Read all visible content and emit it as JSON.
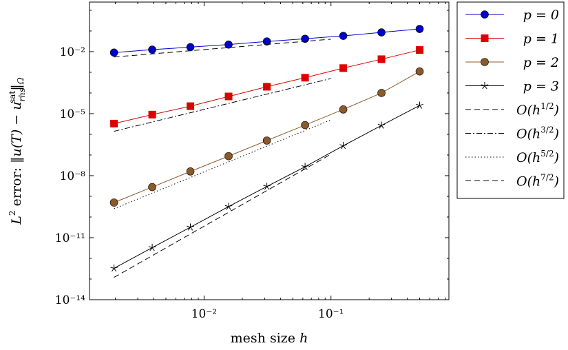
{
  "chart_data": {
    "type": "line",
    "x_scale": "log",
    "y_scale": "log",
    "xlim": [
      0.00125,
      0.85
    ],
    "ylim": [
      1e-14,
      2.5
    ],
    "xlabel": "mesh size h",
    "ylabel": "L² error: ‖u(T) − u_rhs^sat‖_Ω",
    "x_ticks": [
      {
        "value": 0.01,
        "label": "10⁻²"
      },
      {
        "value": 0.1,
        "label": "10⁻¹"
      }
    ],
    "y_ticks": [
      {
        "value": 0.01,
        "label": "10⁻²"
      },
      {
        "value": 1e-05,
        "label": "10⁻⁵"
      },
      {
        "value": 1e-08,
        "label": "10⁻⁸"
      },
      {
        "value": 1e-11,
        "label": "10⁻¹¹"
      },
      {
        "value": 1e-14,
        "label": "10⁻¹⁴"
      }
    ],
    "grid": false,
    "legend_position": "outside-right-top",
    "series": [
      {
        "name": "p = 0",
        "style": "solid",
        "color": "#0000cc",
        "marker": "circle",
        "x": [
          0.00195,
          0.0039,
          0.0078,
          0.0156,
          0.03125,
          0.0625,
          0.125,
          0.25,
          0.5
        ],
        "y": [
          0.009,
          0.0125,
          0.0165,
          0.022,
          0.031,
          0.042,
          0.058,
          0.085,
          0.125
        ]
      },
      {
        "name": "p = 1",
        "style": "solid",
        "color": "#dd0000",
        "marker": "square",
        "x": [
          0.00195,
          0.0039,
          0.0078,
          0.0156,
          0.03125,
          0.0625,
          0.125,
          0.25,
          0.5
        ],
        "y": [
          3.3e-06,
          9e-06,
          2.3e-05,
          6.8e-05,
          0.0002,
          0.00055,
          0.0016,
          0.0043,
          0.012
        ]
      },
      {
        "name": "p = 2",
        "style": "solid",
        "color": "#8b5a2b",
        "marker": "circle",
        "x": [
          0.00195,
          0.0039,
          0.0078,
          0.0156,
          0.03125,
          0.0625,
          0.125,
          0.25,
          0.5
        ],
        "y": [
          5e-10,
          2.8e-09,
          1.6e-08,
          8.8e-08,
          5e-07,
          2.8e-06,
          1.6e-05,
          0.0001,
          0.0011
        ]
      },
      {
        "name": "p = 3",
        "style": "solid",
        "color": "#000000",
        "marker": "star",
        "x": [
          0.00195,
          0.0039,
          0.0078,
          0.0156,
          0.03125,
          0.0625,
          0.125,
          0.25,
          0.5
        ],
        "y": [
          3.3e-13,
          3.3e-12,
          3.2e-11,
          3.2e-10,
          3e-09,
          2.7e-08,
          2.8e-07,
          2.7e-06,
          2.5e-05
        ]
      },
      {
        "name": "O(h^{1/2})",
        "style": "dashed",
        "color": "#000000",
        "marker": "none",
        "x": [
          0.00195,
          0.1
        ],
        "y": [
          0.0055,
          0.04
        ]
      },
      {
        "name": "O(h^{3/2})",
        "style": "dashdot",
        "color": "#000000",
        "marker": "none",
        "x": [
          0.00195,
          0.1
        ],
        "y": [
          1.4e-06,
          0.0005
        ]
      },
      {
        "name": "O(h^{5/2})",
        "style": "dotted",
        "color": "#000000",
        "marker": "none",
        "x": [
          0.00195,
          0.1
        ],
        "y": [
          2.5e-10,
          5e-06
        ]
      },
      {
        "name": "O(h^{7/2})",
        "style": "dashed",
        "color": "#000000",
        "marker": "none",
        "x": [
          0.00195,
          0.1
        ],
        "y": [
          1.2e-13,
          1.1e-07
        ]
      }
    ]
  },
  "legend": {
    "entries": [
      {
        "prefix": "p = ",
        "value": "0"
      },
      {
        "prefix": "p = ",
        "value": "1"
      },
      {
        "prefix": "p = ",
        "value": "2"
      },
      {
        "prefix": "p = ",
        "value": "3"
      },
      {
        "prefix": "O(h",
        "exp": "1/2",
        "suffix": ")"
      },
      {
        "prefix": "O(h",
        "exp": "3/2",
        "suffix": ")"
      },
      {
        "prefix": "O(h",
        "exp": "5/2",
        "suffix": ")"
      },
      {
        "prefix": "O(h",
        "exp": "7/2",
        "suffix": ")"
      }
    ]
  },
  "labels": {
    "x_main": "mesh size ",
    "x_var": "h",
    "y_prefix": "L",
    "y_sup2": "2",
    "y_mid": " error: ‖",
    "y_u": "u",
    "y_T": "(T) − ",
    "y_u2": "u",
    "y_sub": "rhs",
    "y_sup": "sat",
    "y_end": "‖",
    "y_omega": "Ω"
  }
}
